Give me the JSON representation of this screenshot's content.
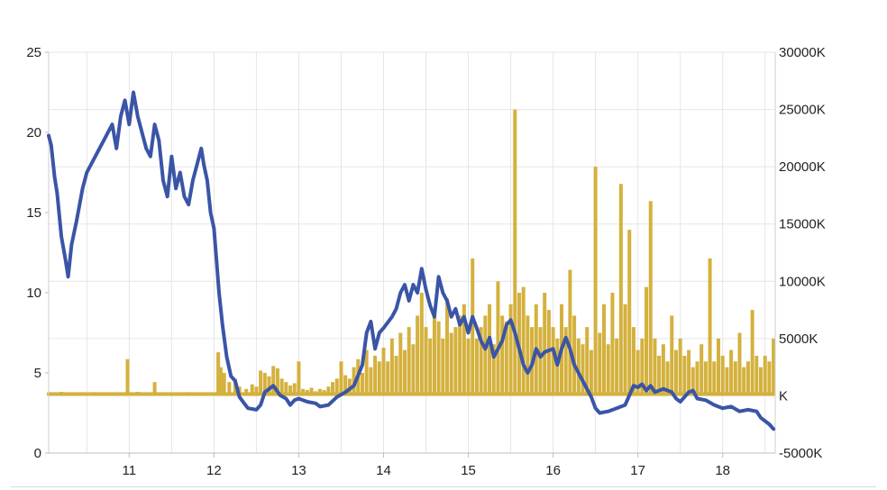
{
  "chart_data": {
    "type": "line",
    "title": "",
    "xlabel": "",
    "ylabel": "",
    "xlim": [
      10.05,
      18.62
    ],
    "x_ticks": [
      11,
      12,
      13,
      14,
      15,
      16,
      17,
      18
    ],
    "x_tick_labels": [
      "11",
      "12",
      "13",
      "14",
      "15",
      "16",
      "17",
      "18"
    ],
    "ylim_left": [
      0,
      25
    ],
    "y_left_ticks": [
      0,
      5,
      10,
      15,
      20,
      25
    ],
    "y_left_tick_labels": [
      "0",
      "5",
      "10",
      "15",
      "20",
      "25"
    ],
    "ylim_right": [
      -5000,
      30000
    ],
    "y_right_ticks": [
      -5000,
      0,
      5000,
      10000,
      15000,
      20000,
      25000,
      30000
    ],
    "y_right_tick_labels": [
      "-5000K",
      "K",
      "5000K",
      "10000K",
      "15000K",
      "20000K",
      "25000K",
      "30000K"
    ],
    "grid": true,
    "legend": "none",
    "series": [
      {
        "type": "line",
        "axis": "left",
        "color": "#3a55a6",
        "points": [
          [
            10.05,
            19.8
          ],
          [
            10.08,
            19.2
          ],
          [
            10.12,
            17.2
          ],
          [
            10.15,
            16.2
          ],
          [
            10.2,
            13.5
          ],
          [
            10.25,
            12.0
          ],
          [
            10.28,
            11.0
          ],
          [
            10.32,
            13.0
          ],
          [
            10.38,
            14.5
          ],
          [
            10.45,
            16.5
          ],
          [
            10.5,
            17.5
          ],
          [
            10.6,
            18.5
          ],
          [
            10.7,
            19.5
          ],
          [
            10.8,
            20.5
          ],
          [
            10.85,
            19.0
          ],
          [
            10.9,
            21.0
          ],
          [
            10.95,
            22.0
          ],
          [
            11.0,
            20.5
          ],
          [
            11.05,
            22.5
          ],
          [
            11.1,
            21.0
          ],
          [
            11.15,
            20.0
          ],
          [
            11.2,
            19.0
          ],
          [
            11.25,
            18.5
          ],
          [
            11.3,
            20.5
          ],
          [
            11.35,
            19.5
          ],
          [
            11.4,
            17.0
          ],
          [
            11.45,
            16.0
          ],
          [
            11.5,
            18.5
          ],
          [
            11.55,
            16.5
          ],
          [
            11.6,
            17.5
          ],
          [
            11.65,
            16.0
          ],
          [
            11.7,
            15.5
          ],
          [
            11.75,
            17.0
          ],
          [
            11.8,
            18.0
          ],
          [
            11.85,
            19.0
          ],
          [
            11.88,
            18.0
          ],
          [
            11.92,
            17.0
          ],
          [
            11.96,
            15.0
          ],
          [
            12.0,
            14.0
          ],
          [
            12.03,
            12.0
          ],
          [
            12.06,
            10.0
          ],
          [
            12.1,
            8.0
          ],
          [
            12.15,
            6.0
          ],
          [
            12.2,
            4.8
          ],
          [
            12.25,
            4.5
          ],
          [
            12.3,
            3.5
          ],
          [
            12.4,
            2.8
          ],
          [
            12.5,
            2.7
          ],
          [
            12.55,
            3.0
          ],
          [
            12.6,
            3.8
          ],
          [
            12.7,
            4.2
          ],
          [
            12.78,
            3.6
          ],
          [
            12.85,
            3.4
          ],
          [
            12.9,
            3.0
          ],
          [
            12.95,
            3.3
          ],
          [
            13.0,
            3.4
          ],
          [
            13.1,
            3.2
          ],
          [
            13.2,
            3.1
          ],
          [
            13.25,
            2.9
          ],
          [
            13.35,
            3.0
          ],
          [
            13.45,
            3.5
          ],
          [
            13.55,
            3.8
          ],
          [
            13.65,
            4.2
          ],
          [
            13.75,
            5.5
          ],
          [
            13.8,
            7.5
          ],
          [
            13.85,
            8.2
          ],
          [
            13.9,
            6.5
          ],
          [
            13.95,
            7.5
          ],
          [
            14.0,
            7.8
          ],
          [
            14.1,
            8.5
          ],
          [
            14.15,
            9.0
          ],
          [
            14.2,
            10.0
          ],
          [
            14.25,
            10.5
          ],
          [
            14.3,
            9.5
          ],
          [
            14.35,
            10.5
          ],
          [
            14.4,
            10.0
          ],
          [
            14.45,
            11.5
          ],
          [
            14.5,
            10.2
          ],
          [
            14.55,
            9.2
          ],
          [
            14.6,
            8.5
          ],
          [
            14.65,
            11.0
          ],
          [
            14.7,
            10.0
          ],
          [
            14.75,
            9.5
          ],
          [
            14.8,
            8.5
          ],
          [
            14.85,
            9.0
          ],
          [
            14.9,
            8.0
          ],
          [
            14.95,
            8.5
          ],
          [
            15.0,
            7.5
          ],
          [
            15.05,
            8.5
          ],
          [
            15.1,
            7.8
          ],
          [
            15.15,
            7.0
          ],
          [
            15.2,
            6.5
          ],
          [
            15.25,
            7.2
          ],
          [
            15.3,
            6.0
          ],
          [
            15.35,
            6.5
          ],
          [
            15.4,
            7.0
          ],
          [
            15.45,
            8.0
          ],
          [
            15.5,
            8.3
          ],
          [
            15.55,
            7.5
          ],
          [
            15.6,
            6.5
          ],
          [
            15.65,
            5.5
          ],
          [
            15.7,
            5.0
          ],
          [
            15.75,
            5.5
          ],
          [
            15.8,
            6.5
          ],
          [
            15.85,
            6.0
          ],
          [
            15.9,
            6.3
          ],
          [
            16.0,
            6.5
          ],
          [
            16.05,
            5.5
          ],
          [
            16.1,
            6.5
          ],
          [
            16.15,
            7.2
          ],
          [
            16.2,
            6.5
          ],
          [
            16.25,
            5.5
          ],
          [
            16.3,
            5.0
          ],
          [
            16.35,
            4.5
          ],
          [
            16.4,
            4.0
          ],
          [
            16.45,
            3.5
          ],
          [
            16.5,
            2.8
          ],
          [
            16.55,
            2.5
          ],
          [
            16.65,
            2.6
          ],
          [
            16.75,
            2.8
          ],
          [
            16.85,
            3.0
          ],
          [
            16.9,
            3.6
          ],
          [
            16.95,
            4.2
          ],
          [
            17.0,
            4.1
          ],
          [
            17.05,
            4.3
          ],
          [
            17.1,
            3.9
          ],
          [
            17.15,
            4.2
          ],
          [
            17.2,
            3.8
          ],
          [
            17.3,
            4.0
          ],
          [
            17.4,
            3.8
          ],
          [
            17.45,
            3.4
          ],
          [
            17.5,
            3.2
          ],
          [
            17.6,
            3.8
          ],
          [
            17.65,
            3.9
          ],
          [
            17.7,
            3.4
          ],
          [
            17.8,
            3.3
          ],
          [
            17.9,
            3.0
          ],
          [
            18.0,
            2.8
          ],
          [
            18.1,
            2.9
          ],
          [
            18.2,
            2.6
          ],
          [
            18.3,
            2.7
          ],
          [
            18.4,
            2.6
          ],
          [
            18.45,
            2.2
          ],
          [
            18.5,
            2.0
          ],
          [
            18.55,
            1.8
          ],
          [
            18.6,
            1.5
          ]
        ]
      },
      {
        "type": "bar",
        "axis": "right",
        "color": "#d4b13e",
        "baseline": 0,
        "points": [
          [
            10.05,
            300
          ],
          [
            10.2,
            350
          ],
          [
            10.4,
            280
          ],
          [
            10.6,
            320
          ],
          [
            10.8,
            300
          ],
          [
            10.98,
            3200
          ],
          [
            11.1,
            350
          ],
          [
            11.3,
            1200
          ],
          [
            11.5,
            300
          ],
          [
            11.7,
            320
          ],
          [
            11.9,
            300
          ],
          [
            12.05,
            3800
          ],
          [
            12.08,
            2500
          ],
          [
            12.12,
            2000
          ],
          [
            12.18,
            1200
          ],
          [
            12.25,
            1500
          ],
          [
            12.3,
            800
          ],
          [
            12.38,
            600
          ],
          [
            12.45,
            1000
          ],
          [
            12.5,
            800
          ],
          [
            12.55,
            2200
          ],
          [
            12.6,
            2000
          ],
          [
            12.65,
            1700
          ],
          [
            12.7,
            2600
          ],
          [
            12.75,
            2400
          ],
          [
            12.8,
            1500
          ],
          [
            12.85,
            1200
          ],
          [
            12.9,
            900
          ],
          [
            12.95,
            1100
          ],
          [
            13.0,
            3000
          ],
          [
            13.05,
            600
          ],
          [
            13.1,
            500
          ],
          [
            13.15,
            700
          ],
          [
            13.2,
            400
          ],
          [
            13.25,
            600
          ],
          [
            13.3,
            500
          ],
          [
            13.35,
            800
          ],
          [
            13.4,
            1200
          ],
          [
            13.45,
            1500
          ],
          [
            13.5,
            3000
          ],
          [
            13.55,
            1800
          ],
          [
            13.6,
            1500
          ],
          [
            13.65,
            2500
          ],
          [
            13.7,
            3200
          ],
          [
            13.75,
            2000
          ],
          [
            13.8,
            4000
          ],
          [
            13.85,
            2500
          ],
          [
            13.9,
            3500
          ],
          [
            13.95,
            3000
          ],
          [
            14.0,
            4200
          ],
          [
            14.05,
            3000
          ],
          [
            14.1,
            5000
          ],
          [
            14.15,
            3500
          ],
          [
            14.2,
            5500
          ],
          [
            14.25,
            4000
          ],
          [
            14.3,
            6000
          ],
          [
            14.35,
            4500
          ],
          [
            14.4,
            7000
          ],
          [
            14.45,
            9000
          ],
          [
            14.5,
            6000
          ],
          [
            14.55,
            5000
          ],
          [
            14.6,
            7500
          ],
          [
            14.65,
            6500
          ],
          [
            14.7,
            5000
          ],
          [
            14.75,
            8500
          ],
          [
            14.8,
            5500
          ],
          [
            14.85,
            6000
          ],
          [
            14.9,
            7000
          ],
          [
            14.95,
            8000
          ],
          [
            15.0,
            5000
          ],
          [
            15.05,
            12000
          ],
          [
            15.1,
            5000
          ],
          [
            15.15,
            6000
          ],
          [
            15.2,
            7000
          ],
          [
            15.25,
            8000
          ],
          [
            15.3,
            4500
          ],
          [
            15.35,
            10000
          ],
          [
            15.4,
            7000
          ],
          [
            15.45,
            6500
          ],
          [
            15.5,
            8000
          ],
          [
            15.55,
            25000
          ],
          [
            15.6,
            9000
          ],
          [
            15.65,
            9500
          ],
          [
            15.7,
            7000
          ],
          [
            15.75,
            6000
          ],
          [
            15.8,
            8000
          ],
          [
            15.85,
            6000
          ],
          [
            15.9,
            9000
          ],
          [
            15.95,
            7500
          ],
          [
            16.0,
            6000
          ],
          [
            16.05,
            5000
          ],
          [
            16.1,
            8000
          ],
          [
            16.15,
            6000
          ],
          [
            16.2,
            11000
          ],
          [
            16.25,
            7000
          ],
          [
            16.3,
            5000
          ],
          [
            16.35,
            4500
          ],
          [
            16.4,
            6000
          ],
          [
            16.45,
            4000
          ],
          [
            16.5,
            20000
          ],
          [
            16.55,
            5500
          ],
          [
            16.6,
            8000
          ],
          [
            16.65,
            4500
          ],
          [
            16.7,
            9000
          ],
          [
            16.75,
            5000
          ],
          [
            16.8,
            18500
          ],
          [
            16.85,
            8000
          ],
          [
            16.9,
            14500
          ],
          [
            16.95,
            6000
          ],
          [
            17.0,
            4000
          ],
          [
            17.05,
            5000
          ],
          [
            17.1,
            9500
          ],
          [
            17.15,
            17000
          ],
          [
            17.2,
            5000
          ],
          [
            17.25,
            3500
          ],
          [
            17.3,
            4500
          ],
          [
            17.35,
            3000
          ],
          [
            17.4,
            7000
          ],
          [
            17.45,
            4000
          ],
          [
            17.5,
            5000
          ],
          [
            17.55,
            3500
          ],
          [
            17.6,
            4000
          ],
          [
            17.65,
            2500
          ],
          [
            17.7,
            3000
          ],
          [
            17.75,
            4500
          ],
          [
            17.8,
            3000
          ],
          [
            17.85,
            12000
          ],
          [
            17.9,
            3000
          ],
          [
            17.95,
            5000
          ],
          [
            18.0,
            3500
          ],
          [
            18.05,
            2500
          ],
          [
            18.1,
            4000
          ],
          [
            18.15,
            3000
          ],
          [
            18.2,
            5500
          ],
          [
            18.25,
            2500
          ],
          [
            18.3,
            3000
          ],
          [
            18.35,
            7500
          ],
          [
            18.4,
            3500
          ],
          [
            18.45,
            2500
          ],
          [
            18.5,
            3500
          ],
          [
            18.55,
            3000
          ],
          [
            18.6,
            5000
          ]
        ]
      }
    ]
  }
}
